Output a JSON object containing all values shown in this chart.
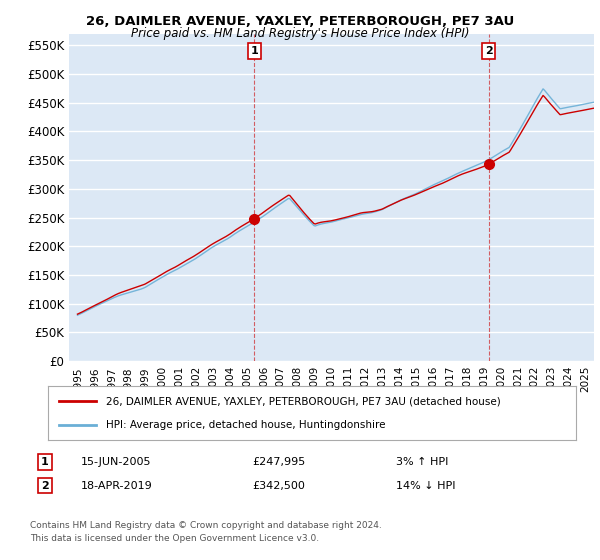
{
  "title": "26, DAIMLER AVENUE, YAXLEY, PETERBOROUGH, PE7 3AU",
  "subtitle": "Price paid vs. HM Land Registry's House Price Index (HPI)",
  "ylabel_ticks": [
    "£0",
    "£50K",
    "£100K",
    "£150K",
    "£200K",
    "£250K",
    "£300K",
    "£350K",
    "£400K",
    "£450K",
    "£500K",
    "£550K"
  ],
  "ytick_values": [
    0,
    50000,
    100000,
    150000,
    200000,
    250000,
    300000,
    350000,
    400000,
    450000,
    500000,
    550000
  ],
  "ylim": [
    0,
    570000
  ],
  "xlim_start": 1994.5,
  "xlim_end": 2025.5,
  "bg_color": "#dce8f5",
  "grid_color": "#ffffff",
  "hpi_color": "#6aafd6",
  "price_color": "#cc0000",
  "sale1_x": 2005.45,
  "sale1_y": 247995,
  "sale2_x": 2019.29,
  "sale2_y": 342500,
  "sale1_label": "1",
  "sale2_label": "2",
  "legend_line1": "26, DAIMLER AVENUE, YAXLEY, PETERBOROUGH, PE7 3AU (detached house)",
  "legend_line2": "HPI: Average price, detached house, Huntingdonshire",
  "annotation1": "15-JUN-2005",
  "annotation1_price": "£247,995",
  "annotation1_hpi": "3% ↑ HPI",
  "annotation2": "18-APR-2019",
  "annotation2_price": "£342,500",
  "annotation2_hpi": "14% ↓ HPI",
  "footer": "Contains HM Land Registry data © Crown copyright and database right 2024.\nThis data is licensed under the Open Government Licence v3.0."
}
